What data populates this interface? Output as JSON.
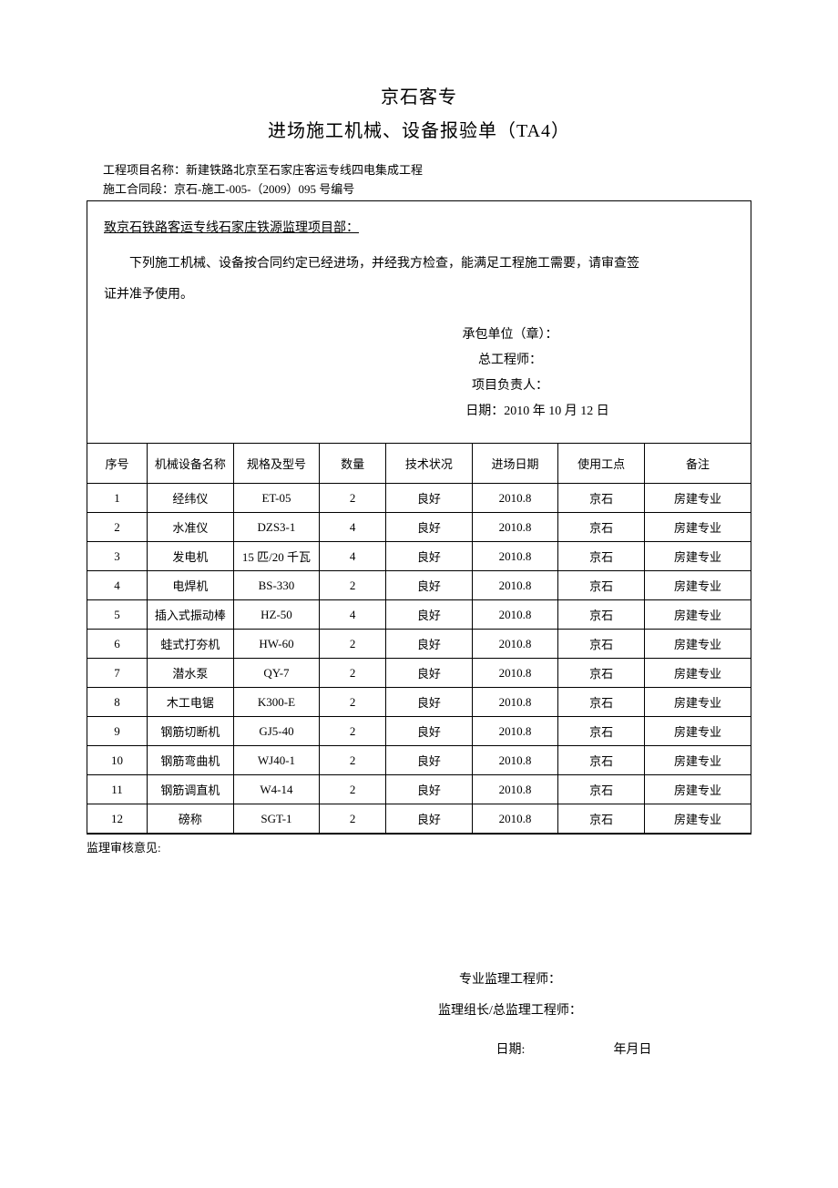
{
  "header": {
    "title1": "京石客专",
    "title2": "进场施工机械、设备报验单（TA4）",
    "project_label": "工程项目名称：",
    "project_value": "新建铁路北京至石家庄客运专线四电集成工程",
    "contract_label": "施工合同段：",
    "contract_value": "京石-施工-005-（2009）095 号编号"
  },
  "letter": {
    "addressee": "致京石铁路客运专线石家庄铁源监理项目部：",
    "body1": "下列施工机械、设备按合同约定已经进场，并经我方检查，能满足工程施工需要，请审查签",
    "body2": "证并准予使用。",
    "contractor_seal": "承包单位（章）：",
    "chief_engineer": "总工程师：",
    "project_head": "项目负责人：",
    "date_label": "日期：",
    "date_value": "2010 年 10 月 12 日"
  },
  "table": {
    "headers": [
      "序号",
      "机械设备名称",
      "规格及型号",
      "数量",
      "技术状况",
      "进场日期",
      "使用工点",
      "备注"
    ],
    "col_widths": [
      "9%",
      "13%",
      "13%",
      "10%",
      "13%",
      "13%",
      "13%",
      "16%"
    ],
    "rows": [
      [
        "1",
        "经纬仪",
        "ET-05",
        "2",
        "良好",
        "2010.8",
        "京石",
        "房建专业"
      ],
      [
        "2",
        "水准仪",
        "DZS3-1",
        "4",
        "良好",
        "2010.8",
        "京石",
        "房建专业"
      ],
      [
        "3",
        "发电机",
        "15 匹/20 千瓦",
        "4",
        "良好",
        "2010.8",
        "京石",
        "房建专业"
      ],
      [
        "4",
        "电焊机",
        "BS-330",
        "2",
        "良好",
        "2010.8",
        "京石",
        "房建专业"
      ],
      [
        "5",
        "插入式振动棒",
        "HZ-50",
        "4",
        "良好",
        "2010.8",
        "京石",
        "房建专业"
      ],
      [
        "6",
        "蛙式打夯机",
        "HW-60",
        "2",
        "良好",
        "2010.8",
        "京石",
        "房建专业"
      ],
      [
        "7",
        "潜水泵",
        "QY-7",
        "2",
        "良好",
        "2010.8",
        "京石",
        "房建专业"
      ],
      [
        "8",
        "木工电锯",
        "K300-E",
        "2",
        "良好",
        "2010.8",
        "京石",
        "房建专业"
      ],
      [
        "9",
        "钢筋切断机",
        "GJ5-40",
        "2",
        "良好",
        "2010.8",
        "京石",
        "房建专业"
      ],
      [
        "10",
        "钢筋弯曲机",
        "WJ40-1",
        "2",
        "良好",
        "2010.8",
        "京石",
        "房建专业"
      ],
      [
        "11",
        "钢筋调直机",
        "W4-14",
        "2",
        "良好",
        "2010.8",
        "京石",
        "房建专业"
      ],
      [
        "12",
        "磅称",
        "SGT-1",
        "2",
        "良好",
        "2010.8",
        "京石",
        "房建专业"
      ]
    ]
  },
  "review": {
    "label": "监理审核意见:",
    "prof_engineer": "专业监理工程师：",
    "group_leader": "监理组长/总监理工程师：",
    "date_label": "日期:",
    "date_value": "年月日"
  }
}
